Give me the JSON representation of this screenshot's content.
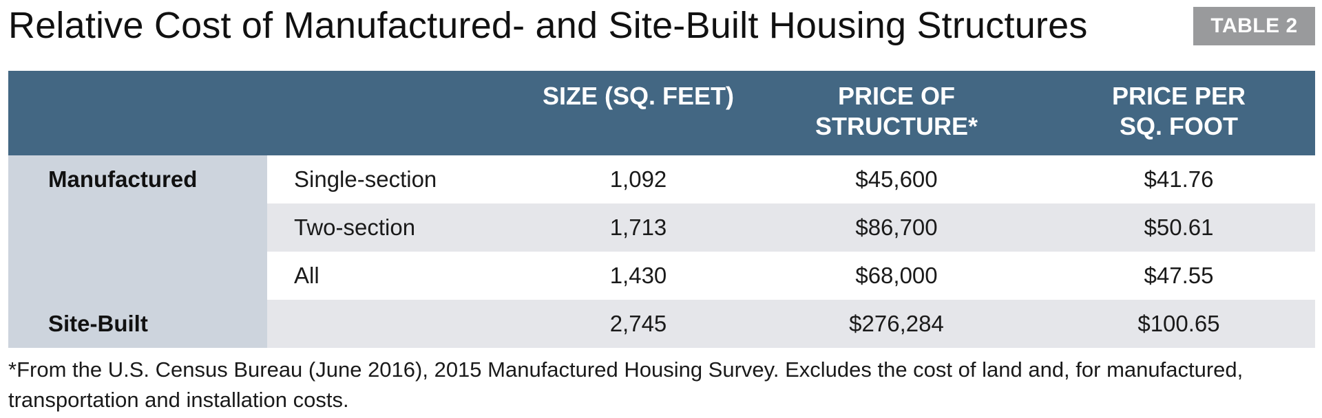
{
  "title": "Relative Cost of Manufactured- and Site-Built Housing Structures",
  "badge": "TABLE 2",
  "table": {
    "headers": {
      "size": "SIZE (SQ. FEET)",
      "price_line1": "PRICE OF",
      "price_line2": "STRUCTURE*",
      "ppsf_line1": "PRICE PER",
      "ppsf_line2": "SQ. FOOT"
    },
    "rows": [
      {
        "group": "Manufactured",
        "sub": "Single-section",
        "size": "1,092",
        "price": "$45,600",
        "ppsf": "$41.76"
      },
      {
        "group": "",
        "sub": "Two-section",
        "size": "1,713",
        "price": "$86,700",
        "ppsf": "$50.61"
      },
      {
        "group": "",
        "sub": "All",
        "size": "1,430",
        "price": "$68,000",
        "ppsf": "$47.55"
      },
      {
        "group": "Site-Built",
        "sub": "",
        "size": "2,745",
        "price": "$276,284",
        "ppsf": "$100.65"
      }
    ]
  },
  "footnote": "*From the U.S. Census Bureau (June 2016), 2015 Manufactured Housing Survey. Excludes the cost of land and, for manufactured, transportation and installation costs.",
  "colors": {
    "header_bg": "#436783",
    "group_col_bg": "#cdd4dd",
    "alt_row_bg": "#e5e6ea",
    "badge_bg": "#999a9c"
  }
}
